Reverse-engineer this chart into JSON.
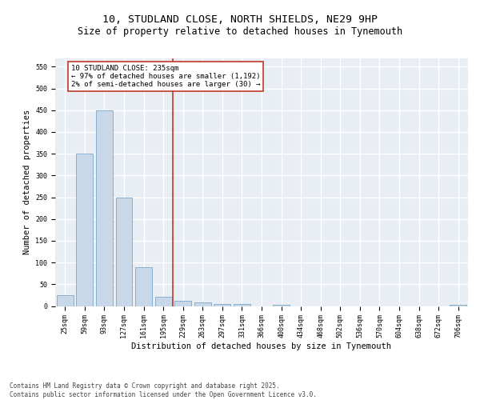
{
  "title_line1": "10, STUDLAND CLOSE, NORTH SHIELDS, NE29 9HP",
  "title_line2": "Size of property relative to detached houses in Tynemouth",
  "xlabel": "Distribution of detached houses by size in Tynemouth",
  "ylabel": "Number of detached properties",
  "categories": [
    "25sqm",
    "59sqm",
    "93sqm",
    "127sqm",
    "161sqm",
    "195sqm",
    "229sqm",
    "263sqm",
    "297sqm",
    "331sqm",
    "366sqm",
    "400sqm",
    "434sqm",
    "468sqm",
    "502sqm",
    "536sqm",
    "570sqm",
    "604sqm",
    "638sqm",
    "672sqm",
    "706sqm"
  ],
  "values": [
    25,
    350,
    450,
    250,
    90,
    22,
    12,
    8,
    5,
    5,
    0,
    3,
    0,
    0,
    0,
    0,
    0,
    0,
    0,
    0,
    3
  ],
  "bar_color": "#c8d8e8",
  "bar_edge_color": "#7aa8c8",
  "vline_color": "#c0392b",
  "vline_index": 6.0,
  "annotation_text": "10 STUDLAND CLOSE: 235sqm\n← 97% of detached houses are smaller (1,192)\n2% of semi-detached houses are larger (30) →",
  "annotation_box_edgecolor": "#c0392b",
  "ylim_max": 570,
  "yticks": [
    0,
    50,
    100,
    150,
    200,
    250,
    300,
    350,
    400,
    450,
    500,
    550
  ],
  "plot_bgcolor": "#e8eef4",
  "footer_text": "Contains HM Land Registry data © Crown copyright and database right 2025.\nContains public sector information licensed under the Open Government Licence v3.0.",
  "title_fontsize": 9.5,
  "subtitle_fontsize": 8.5,
  "tick_fontsize": 6.0,
  "ylabel_fontsize": 7.5,
  "xlabel_fontsize": 7.5,
  "annotation_fontsize": 6.5,
  "footer_fontsize": 5.5
}
